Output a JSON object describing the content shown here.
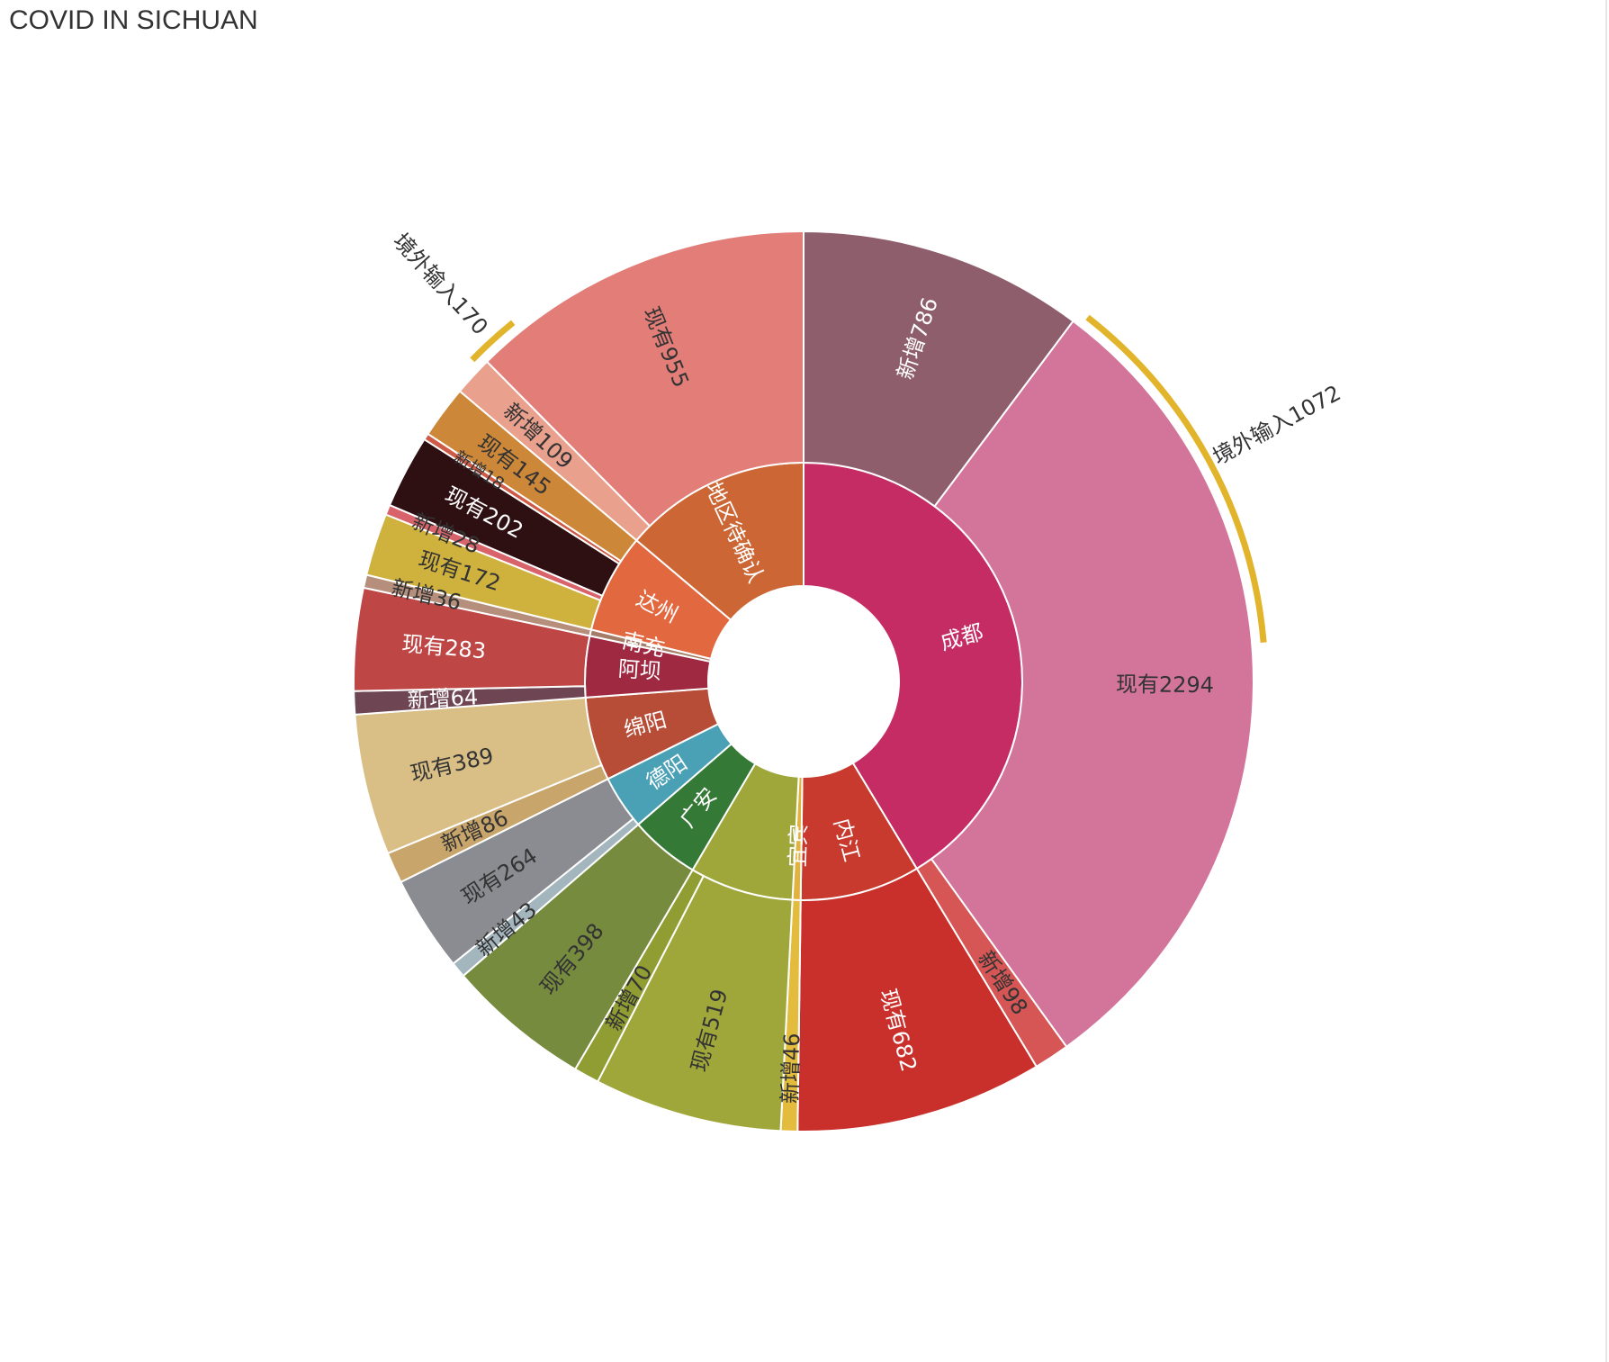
{
  "title": "COVID IN SICHUAN",
  "chart_data": {
    "type": "sunburst",
    "title": "COVID IN SICHUAN",
    "center": {
      "values": []
    },
    "regions": [
      {
        "name": "成都",
        "color": "#c52c64",
        "children": [
          {
            "name": "新增786",
            "value": 786,
            "color": "#8e5e6c"
          },
          {
            "name": "现有2294",
            "value": 2294,
            "color": "#d3759b"
          },
          {
            "name": "新增98",
            "value": 98,
            "color": "#d55655"
          }
        ]
      },
      {
        "name": "内江",
        "color": "#c73a2d",
        "children": [
          {
            "name": "现有682",
            "value": 682,
            "color": "#c9302b"
          }
        ]
      },
      {
        "name": "宜宾",
        "color": "#e2b33c",
        "children": [
          {
            "name": "新增46",
            "value": 46,
            "color": "#e3bc3d"
          }
        ]
      },
      {
        "name": "",
        "color": "#a0a73a",
        "children": [
          {
            "name": "现有519",
            "value": 519,
            "color": "#a0a73a"
          },
          {
            "name": "新增70",
            "value": 70,
            "color": "#8f9d33"
          }
        ]
      },
      {
        "name": "广安",
        "color": "#357936",
        "children": [
          {
            "name": "现有398",
            "value": 398,
            "color": "#768b3e"
          }
        ]
      },
      {
        "name": "德阳",
        "color": "#4aa0b5",
        "children": [
          {
            "name": "新增43",
            "value": 43,
            "color": "#a4b6bd"
          },
          {
            "name": "现有264",
            "value": 264,
            "color": "#8b8c91"
          }
        ]
      },
      {
        "name": "绵阳",
        "color": "#b84d37",
        "children": [
          {
            "name": "新增86",
            "value": 86,
            "color": "#c8a56b"
          },
          {
            "name": "现有389",
            "value": 389,
            "color": "#d9bf86"
          }
        ]
      },
      {
        "name": "阿坝",
        "color": "#a02942",
        "children": [
          {
            "name": "新增64",
            "value": 64,
            "color": "#6e4653"
          },
          {
            "name": "现有283",
            "value": 283,
            "color": "#be4645"
          }
        ]
      },
      {
        "name": "南充",
        "color": "#a47c68",
        "children": [
          {
            "name": "新增36",
            "value": 36,
            "color": "#b68f7c"
          }
        ]
      },
      {
        "name": "达州",
        "color": "#e2683f",
        "children": [
          {
            "name": "现有172",
            "value": 172,
            "color": "#cfb13d"
          },
          {
            "name": "新增28",
            "value": 28,
            "color": "#d8636a"
          },
          {
            "name": "现有202",
            "value": 202,
            "color": "#2e1013"
          },
          {
            "name": "新增18",
            "value": 18,
            "color": "#cd5b47"
          },
          {
            "name": "现有145",
            "value": 145,
            "color": "#cd8739"
          }
        ]
      },
      {
        "name": "地区待确认",
        "color": "#cc6634",
        "children": [
          {
            "name": "新增109",
            "value": 109,
            "color": "#e9a08c"
          },
          {
            "name": "现有955",
            "value": 955,
            "color": "#e27d78"
          }
        ]
      }
    ],
    "outer_labels": [
      {
        "text": "境外输入170",
        "value": 170,
        "color": "#e2b42c"
      },
      {
        "text": "境外输入1072",
        "value": 1072,
        "color": "#e2b42c"
      }
    ]
  }
}
